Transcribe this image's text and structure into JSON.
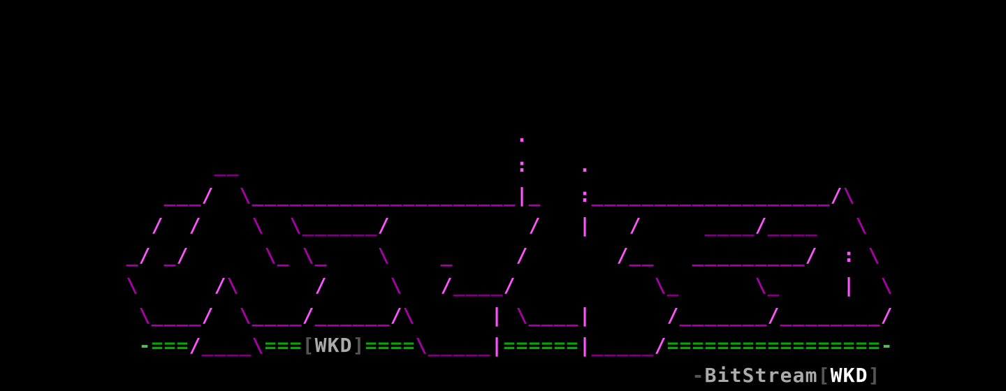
{
  "art": {
    "lines": [
      "",
      "",
      "",
      "",
      "                                         .",
      "                 __                      :    .",
      "             ___/  \\_____________________|_   :___________________/\\",
      "            /  /    \\  \\______/           /   |   /     ____/____   \\",
      "          _/ _/      \\_ \\_    \\    _     /       /__   _________/  : \\",
      "          \\      /\\      /     \\   /____/           \\_      \\_     |  \\",
      "           \\____/  \\____/______/\\      | \\____|      /_______/________/",
      "           -===/____\\===[WKD]====\\_____|======|_____/=================-",
      "                                                       -BitStream[WKD]"
    ],
    "labels": {
      "group_tag": "[WKD]",
      "signature": "-BitStream[WKD]"
    }
  },
  "colors": {
    "background": "#000000",
    "slash": "#ff55ff",
    "backslash": "#aa00aa",
    "underscore_light": "#aa00aa",
    "underscore_dark": "#800080",
    "equals": "#00aa00",
    "dash_green": "#55bb55",
    "bracket": "#555555",
    "tag_text": "#aaaaaa",
    "signature_text": "#aaaaaa",
    "signature_tag": "#ffffff"
  }
}
